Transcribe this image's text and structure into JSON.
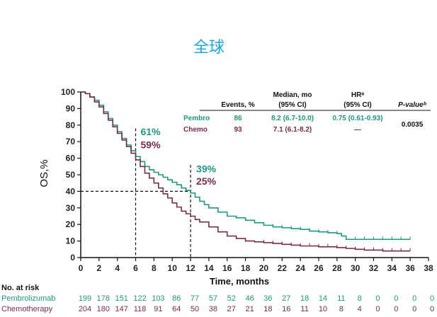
{
  "title": "全球",
  "chart_data": {
    "type": "line",
    "ylabel": "OS,%",
    "xlabel": "Time, months",
    "xlim": [
      0,
      38
    ],
    "ylim": [
      0,
      100
    ],
    "xticks": [
      0,
      2,
      4,
      6,
      8,
      10,
      12,
      14,
      16,
      18,
      20,
      22,
      24,
      26,
      28,
      30,
      32,
      34,
      36,
      38
    ],
    "yticks": [
      0,
      10,
      20,
      30,
      40,
      50,
      60,
      70,
      80,
      90,
      100
    ],
    "colors": {
      "pembro": "#1a9a7f",
      "chemo": "#7a2a4f"
    },
    "series": [
      {
        "name": "Pembrolizumab",
        "color": "#1a9a7f",
        "x": [
          0,
          0.5,
          1,
          1.5,
          2,
          2.5,
          3,
          3.5,
          4,
          4.5,
          5,
          5.5,
          6,
          6.5,
          7,
          7.5,
          8,
          8.5,
          9,
          9.5,
          10,
          10.5,
          11,
          11.5,
          12,
          12.5,
          13,
          13.5,
          14,
          15,
          16,
          17,
          18,
          19,
          20,
          21,
          22,
          23,
          24,
          25,
          26,
          27,
          28,
          28.5,
          29,
          30,
          31,
          32,
          33,
          34,
          35,
          36
        ],
        "y": [
          100,
          99,
          97,
          95,
          92,
          88,
          84,
          80,
          76,
          72,
          68,
          64.5,
          61,
          58,
          55,
          53,
          51.5,
          50,
          48.5,
          47,
          45.5,
          44,
          42,
          40.5,
          39,
          36.5,
          34,
          32,
          30,
          27.5,
          25,
          24,
          22.5,
          21,
          19.5,
          18.5,
          18,
          17.5,
          17,
          16,
          15.5,
          15,
          14.5,
          13,
          11,
          11,
          11,
          11,
          11,
          11,
          11,
          11
        ]
      },
      {
        "name": "Chemotherapy",
        "color": "#7a2a4f",
        "x": [
          0,
          0.5,
          1,
          1.5,
          2,
          2.5,
          3,
          3.5,
          4,
          4.5,
          5,
          5.5,
          6,
          6.5,
          7,
          7.5,
          8,
          8.5,
          9,
          9.5,
          10,
          10.5,
          11,
          11.5,
          12,
          12.5,
          13,
          14,
          15,
          16,
          17,
          18,
          19,
          20,
          21,
          22,
          23,
          24,
          25,
          26,
          27,
          28,
          29,
          30,
          31,
          32,
          33,
          34,
          35,
          36
        ],
        "y": [
          100,
          99,
          97,
          94,
          91,
          87,
          83,
          79,
          75,
          71,
          67,
          63,
          59,
          55,
          51,
          48,
          45,
          42,
          38.5,
          36,
          33,
          30.5,
          28,
          26.5,
          25,
          23,
          21.5,
          18.5,
          15.5,
          13,
          11.5,
          10,
          9.5,
          9,
          8.5,
          8,
          7.5,
          7,
          7,
          6.5,
          6.5,
          6,
          5.5,
          5,
          4.5,
          4.5,
          4,
          4,
          4,
          4
        ]
      }
    ],
    "landmarks": [
      {
        "x": 6,
        "pembro_label": "61%",
        "chemo_label": "59%"
      },
      {
        "x": 12,
        "pembro_label": "39%",
        "chemo_label": "25%"
      }
    ],
    "median_ref_y": 40
  },
  "table": {
    "headers": [
      "Events, %",
      "Median, mo",
      "(95% CI)",
      "HRᵃ",
      "(95% CI)",
      "P-valueᵇ"
    ],
    "rows": [
      {
        "arm": "Pembro",
        "events": "86",
        "median": "8.2 (6.7-10.0)",
        "hr": "0.75 (0.61-0.93)"
      },
      {
        "arm": "Chemo",
        "events": "93",
        "median": "7.1 (6.1-8.2)",
        "hr": "—"
      }
    ],
    "p_value": "0.0035"
  },
  "at_risk": {
    "title": "No. at risk",
    "rows": [
      {
        "label": "Pembrolizumab",
        "values": [
          "199",
          "178",
          "151",
          "122",
          "103",
          "86",
          "77",
          "57",
          "52",
          "46",
          "36",
          "27",
          "18",
          "14",
          "11",
          "8",
          "0",
          "0",
          "0",
          "0"
        ]
      },
      {
        "label": "Chemotherapy",
        "values": [
          "204",
          "180",
          "147",
          "118",
          "91",
          "64",
          "50",
          "38",
          "27",
          "21",
          "18",
          "16",
          "11",
          "10",
          "8",
          "4",
          "0",
          "0",
          "0",
          "0"
        ]
      }
    ]
  }
}
